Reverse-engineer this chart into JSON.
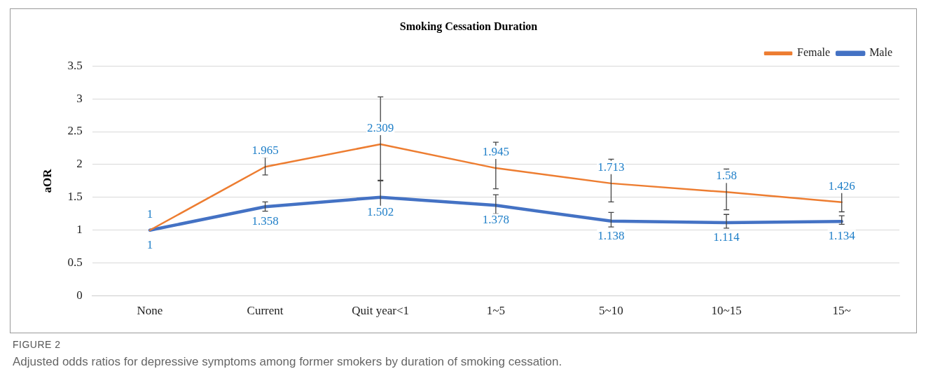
{
  "chart_data": {
    "type": "line",
    "title": "Smoking Cessation Duration",
    "ylabel": "aOR",
    "categories": [
      "None",
      "Current",
      "Quit year<1",
      "1~5",
      "5~10",
      "10~15",
      "15~"
    ],
    "series": [
      {
        "name": "Female",
        "color": "#ed7d31",
        "values": [
          1,
          1.965,
          2.309,
          1.945,
          1.713,
          1.58,
          1.426
        ],
        "errors": [
          null,
          [
            1.84,
            2.11
          ],
          [
            1.76,
            3.03
          ],
          [
            1.63,
            2.34
          ],
          [
            1.43,
            2.08
          ],
          [
            1.31,
            1.93
          ],
          [
            1.28,
            1.63
          ]
        ]
      },
      {
        "name": "Male",
        "color": "#4472c4",
        "values": [
          1,
          1.358,
          1.502,
          1.378,
          1.138,
          1.114,
          1.134
        ],
        "errors": [
          null,
          [
            1.29,
            1.43
          ],
          [
            1.29,
            1.75
          ],
          [
            1.25,
            1.54
          ],
          [
            1.05,
            1.27
          ],
          [
            1.03,
            1.24
          ],
          [
            1.09,
            1.22
          ]
        ]
      }
    ],
    "ylim": [
      0,
      3.5
    ],
    "yticks": [
      0,
      0.5,
      1,
      1.5,
      2,
      2.5,
      3,
      3.5
    ],
    "grid": "y",
    "legend": "top right",
    "marker": "none",
    "line_style": "solid",
    "data_labels": true,
    "annotations": [
      "FIGURE 2",
      "Adjusted odds ratios for depressive symptoms among former smokers by duration of smoking cessation."
    ]
  }
}
